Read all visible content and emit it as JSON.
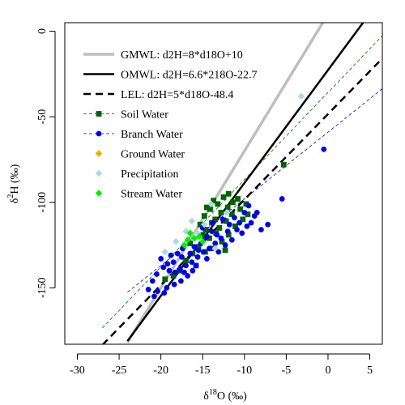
{
  "chart_data": {
    "type": "scatter",
    "title": "",
    "xlabel": {
      "prefix": "δ",
      "sup": "18",
      "suffix": "O (‰)"
    },
    "ylabel": {
      "prefix": "δ",
      "sup": "2",
      "suffix": "H (‰)"
    },
    "xlim": [
      -31.5,
      6.5
    ],
    "ylim": [
      -183,
      5
    ],
    "xticks": [
      -30,
      -25,
      -20,
      -15,
      -10,
      -5,
      0,
      5
    ],
    "yticks": [
      0,
      -50,
      -100,
      -150
    ],
    "grid": false,
    "legend_position": "top-left",
    "lines": [
      {
        "name": "GMWL: d2H=8*d18O+10",
        "slope": 8,
        "intercept": 10,
        "color": "#bebebe",
        "width": 3.5,
        "dash": "",
        "x_range": [
          -24,
          1
        ]
      },
      {
        "name": "OMWL: d2H=6.6*218O-22.7",
        "slope": 6.6,
        "intercept": -22.7,
        "color": "#000000",
        "width": 2.5,
        "dash": "",
        "x_range": [
          -24,
          6.5
        ]
      },
      {
        "name": "LEL: d2H=5*d18O-48.4",
        "slope": 5,
        "intercept": -48.4,
        "color": "#000000",
        "width": 2.5,
        "dash": "9,6",
        "x_range": [
          -27,
          6.5
        ]
      }
    ],
    "fit_lines": [
      {
        "series": "Soil Water",
        "slope": 5.1,
        "intercept": -35.8,
        "color": "#006400",
        "width": 0.8,
        "dash": "4,3",
        "x_range": [
          -27,
          6.5
        ]
      },
      {
        "series": "Branch Water",
        "slope": 3.9,
        "intercept": -59,
        "color": "#0000ee",
        "width": 0.8,
        "dash": "4,3",
        "x_range": [
          -24,
          6.5
        ]
      }
    ],
    "series": [
      {
        "name": "Soil Water",
        "marker": "square",
        "color": "#006400",
        "points": [
          [
            -14.8,
            -108
          ],
          [
            -14.1,
            -104
          ],
          [
            -13.2,
            -101
          ],
          [
            -12.5,
            -97
          ],
          [
            -11.9,
            -95
          ],
          [
            -13.5,
            -110
          ],
          [
            -12.8,
            -106
          ],
          [
            -12,
            -103
          ],
          [
            -11.4,
            -100
          ],
          [
            -10.8,
            -98
          ],
          [
            -15.3,
            -113
          ],
          [
            -14.6,
            -116
          ],
          [
            -13.9,
            -112
          ],
          [
            -13,
            -115
          ],
          [
            -12.2,
            -111
          ],
          [
            -11.5,
            -107
          ],
          [
            -10.5,
            -104
          ],
          [
            -9.8,
            -101
          ],
          [
            -14.2,
            -121
          ],
          [
            -13.4,
            -118
          ],
          [
            -12.7,
            -123
          ],
          [
            -11.9,
            -119
          ],
          [
            -11.1,
            -114
          ],
          [
            -15.5,
            -126
          ],
          [
            -14.7,
            -129
          ],
          [
            -16.2,
            -130
          ],
          [
            -17,
            -134
          ],
          [
            -15.8,
            -137
          ],
          [
            -17.8,
            -140
          ],
          [
            -18.5,
            -143
          ],
          [
            -19.5,
            -145
          ],
          [
            -16.5,
            -124
          ],
          [
            -14,
            -127
          ],
          [
            -12.3,
            -128
          ],
          [
            -5.3,
            -78
          ],
          [
            -10.2,
            -110
          ],
          [
            -9.6,
            -107
          ],
          [
            -14.5,
            -103
          ],
          [
            -13.7,
            -99
          ],
          [
            -15,
            -119
          ]
        ]
      },
      {
        "name": "Branch Water",
        "marker": "circle",
        "color": "#0000ee",
        "points": [
          [
            -0.5,
            -69
          ],
          [
            -5.5,
            -98
          ],
          [
            -8.8,
            -108
          ],
          [
            -9.5,
            -102
          ],
          [
            -10,
            -106
          ],
          [
            -10.6,
            -112
          ],
          [
            -11.2,
            -109
          ],
          [
            -7.2,
            -113
          ],
          [
            -8,
            -116
          ],
          [
            -12,
            -117
          ],
          [
            -12.8,
            -121
          ],
          [
            -13.5,
            -124
          ],
          [
            -14.2,
            -127
          ],
          [
            -14.9,
            -129
          ],
          [
            -15.6,
            -132
          ],
          [
            -16.3,
            -135
          ],
          [
            -17,
            -137
          ],
          [
            -17.7,
            -139
          ],
          [
            -18.3,
            -141
          ],
          [
            -19,
            -140
          ],
          [
            -19.7,
            -138
          ],
          [
            -18.5,
            -135
          ],
          [
            -17.5,
            -132
          ],
          [
            -16.5,
            -130
          ],
          [
            -15.5,
            -128
          ],
          [
            -16.8,
            -143
          ],
          [
            -17.6,
            -146
          ],
          [
            -18.4,
            -148
          ],
          [
            -19.3,
            -150
          ],
          [
            -20.4,
            -152
          ],
          [
            -21.5,
            -151
          ],
          [
            -20.8,
            -155
          ],
          [
            -19.6,
            -153
          ],
          [
            -17.2,
            -141
          ],
          [
            -15.8,
            -137
          ],
          [
            -14.5,
            -133
          ],
          [
            -13.1,
            -129
          ],
          [
            -12.3,
            -125
          ],
          [
            -11.5,
            -122
          ],
          [
            -10.3,
            -118
          ],
          [
            -9.2,
            -112
          ],
          [
            -8.5,
            -106
          ],
          [
            -13.9,
            -117
          ],
          [
            -16,
            -126
          ],
          [
            -18,
            -130
          ],
          [
            -19.2,
            -136
          ],
          [
            -20,
            -133
          ],
          [
            -16.2,
            -140
          ],
          [
            -15.2,
            -124
          ],
          [
            -14.5,
            -120
          ],
          [
            -13.3,
            -119
          ],
          [
            -11.8,
            -113
          ],
          [
            -10.9,
            -116
          ],
          [
            -9.7,
            -114
          ],
          [
            -12.6,
            -110
          ],
          [
            -13.8,
            -112
          ],
          [
            -15,
            -115
          ],
          [
            -17.4,
            -127
          ],
          [
            -18.8,
            -131
          ],
          [
            -20.5,
            -142
          ],
          [
            -21,
            -146
          ]
        ]
      },
      {
        "name": "Ground Water",
        "marker": "diamond",
        "color": "#ffa500",
        "points": []
      },
      {
        "name": "Precipitation",
        "marker": "diamond",
        "color": "#add8e6",
        "points": [
          [
            -3.2,
            -38
          ],
          [
            -13.5,
            -127
          ],
          [
            -14.8,
            -113
          ],
          [
            -16.3,
            -111
          ],
          [
            -18.2,
            -123
          ],
          [
            -19.5,
            -129
          ],
          [
            -15.6,
            -118
          ],
          [
            -17,
            -117
          ],
          [
            -12.1,
            -106
          ],
          [
            -14,
            -101
          ]
        ]
      },
      {
        "name": "Stream Water",
        "marker": "diamond",
        "color": "#00ee00",
        "points": [
          [
            -16.5,
            -118
          ],
          [
            -16,
            -121
          ],
          [
            -15.4,
            -120
          ],
          [
            -17.2,
            -125
          ],
          [
            -15,
            -123
          ],
          [
            -16.8,
            -122
          ]
        ]
      }
    ]
  },
  "legend": {
    "items": [
      {
        "label": "GMWL: d2H=8*d18O+10",
        "kind": "line",
        "color": "#bebebe",
        "width": 3.5,
        "dash": ""
      },
      {
        "label": "OMWL: d2H=6.6*218O-22.7",
        "kind": "line",
        "color": "#000000",
        "width": 2.5,
        "dash": ""
      },
      {
        "label": "LEL: d2H=5*d18O-48.4",
        "kind": "line",
        "color": "#000000",
        "width": 2.5,
        "dash": "9,6"
      },
      {
        "label": "Soil Water",
        "kind": "line-marker",
        "color": "#006400",
        "marker": "square",
        "width": 0.8,
        "dash": "4,3"
      },
      {
        "label": "Branch Water",
        "kind": "line-marker",
        "color": "#0000ee",
        "marker": "circle",
        "width": 0.8,
        "dash": "4,3"
      },
      {
        "label": "Ground Water",
        "kind": "marker",
        "color": "#ffa500",
        "marker": "diamond"
      },
      {
        "label": "Precipitation",
        "kind": "marker",
        "color": "#add8e6",
        "marker": "diamond"
      },
      {
        "label": "Stream Water",
        "kind": "marker",
        "color": "#00ee00",
        "marker": "diamond"
      }
    ]
  }
}
